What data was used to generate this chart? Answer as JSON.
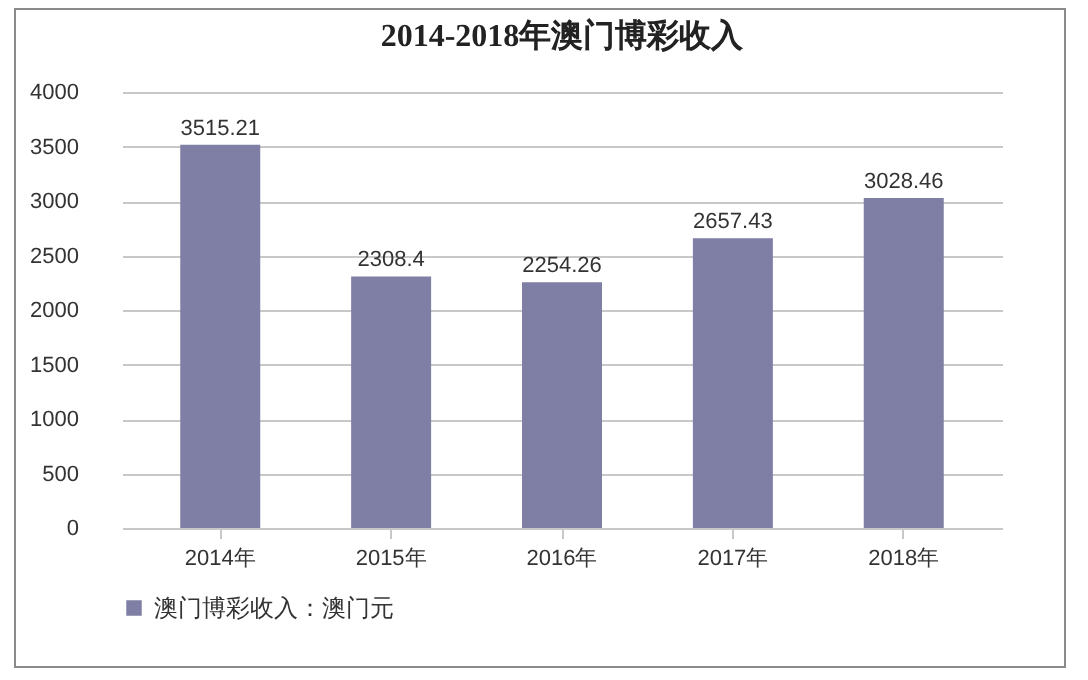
{
  "chart_data": {
    "type": "bar",
    "title": "2014-2018年澳门博彩收入",
    "categories": [
      "2014年",
      "2015年",
      "2016年",
      "2017年",
      "2018年"
    ],
    "series": [
      {
        "name": "澳门博彩收入：澳门元",
        "color": "#7f7fa6",
        "values": [
          3515.21,
          2308.4,
          2254.26,
          2657.43,
          3028.46
        ]
      }
    ],
    "ylim": [
      0,
      4000
    ],
    "yticks": [
      0,
      500,
      1000,
      1500,
      2000,
      2500,
      3000,
      3500,
      4000
    ],
    "grid": "y",
    "legend": "bottom",
    "data_labels": true
  }
}
